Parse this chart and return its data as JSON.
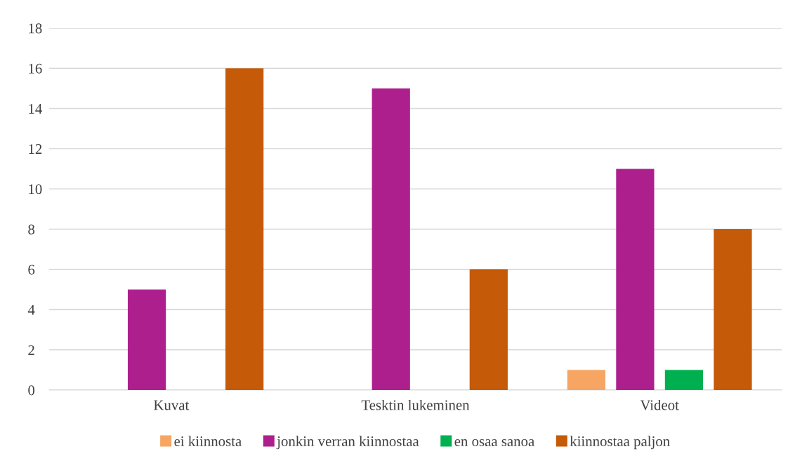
{
  "chart_data": {
    "type": "bar",
    "categories": [
      "Kuvat",
      "Tesktin lukeminen",
      "Videot"
    ],
    "series": [
      {
        "name": "ei kiinnosta",
        "color": "#f7a562",
        "values": [
          0,
          0,
          1
        ]
      },
      {
        "name": "jonkin verran kiinnostaa",
        "color": "#ae1f8e",
        "values": [
          5,
          15,
          11
        ]
      },
      {
        "name": "en osaa sanoa",
        "color": "#00b050",
        "values": [
          0,
          0,
          1
        ]
      },
      {
        "name": "kiinnostaa paljon",
        "color": "#c55a08",
        "values": [
          16,
          6,
          8
        ]
      }
    ],
    "ylim": [
      0,
      18
    ],
    "yticks": [
      0,
      2,
      4,
      6,
      8,
      10,
      12,
      14,
      16,
      18
    ],
    "grid": "y",
    "legend": "bottom"
  }
}
